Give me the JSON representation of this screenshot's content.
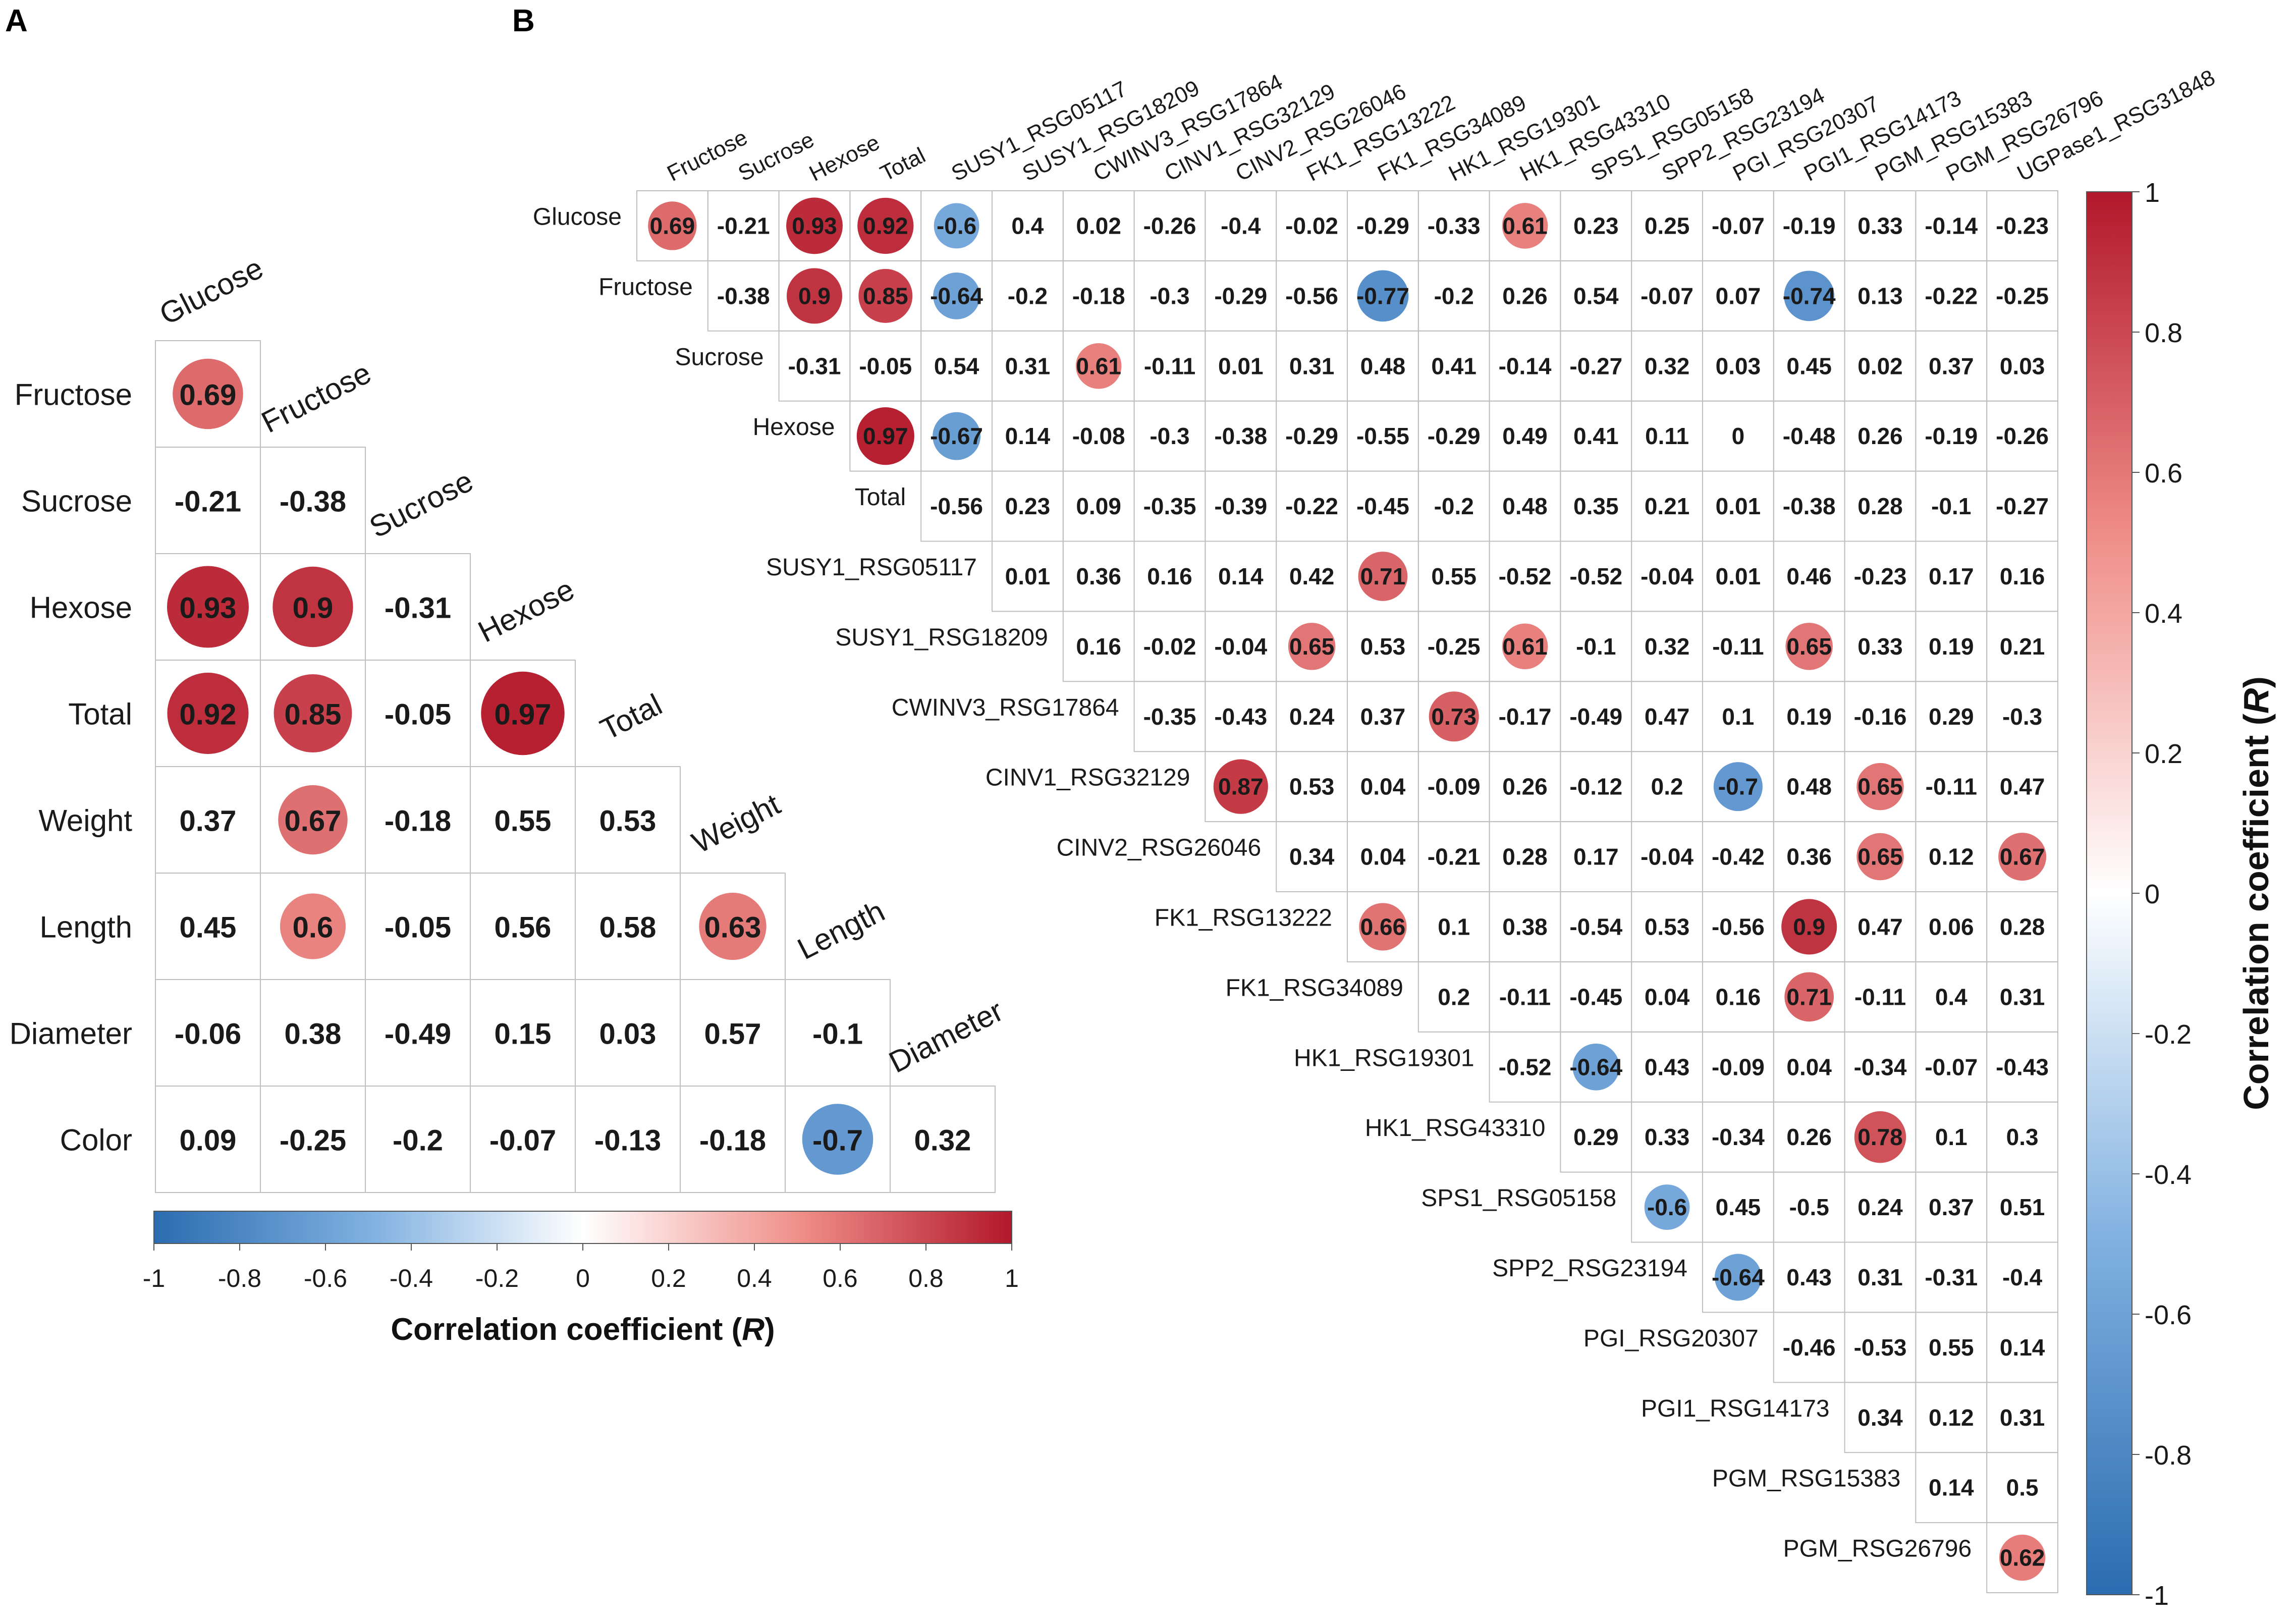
{
  "chart_data": [
    {
      "type": "heatmap",
      "panel_label": "A",
      "shape": "lower-triangle-correlation",
      "row_labels": [
        "Fructose",
        "Sucrose",
        "Hexose",
        "Total",
        "Weight",
        "Length",
        "Diameter",
        "Color"
      ],
      "col_labels": [
        "Glucose",
        "Fructose",
        "Sucrose",
        "Hexose",
        "Total",
        "Weight",
        "Length",
        "Diameter"
      ],
      "values": [
        [
          0.69
        ],
        [
          -0.21,
          -0.38
        ],
        [
          0.93,
          0.9,
          -0.31
        ],
        [
          0.92,
          0.85,
          -0.05,
          0.97
        ],
        [
          0.37,
          0.67,
          -0.18,
          0.55,
          0.53
        ],
        [
          0.45,
          0.6,
          -0.05,
          0.56,
          0.58,
          0.63
        ],
        [
          -0.06,
          0.38,
          -0.49,
          0.15,
          0.03,
          0.57,
          -0.1
        ],
        [
          0.09,
          -0.25,
          -0.2,
          -0.07,
          -0.13,
          -0.18,
          -0.7,
          0.32
        ]
      ],
      "value_labels": [
        [
          "0.69"
        ],
        [
          "-0.21",
          "-0.38"
        ],
        [
          "0.93",
          "0.9",
          "-0.31"
        ],
        [
          "0.92",
          "0.85",
          "-0.05",
          "0.97"
        ],
        [
          "0.37",
          "0.67",
          "-0.18",
          "0.55",
          "0.53"
        ],
        [
          "0.45",
          "0.6",
          "-0.05",
          "0.56",
          "0.58",
          "0.63"
        ],
        [
          "-0.06",
          "0.38",
          "-0.49",
          "0.15",
          "0.03",
          "0.57",
          "-0.1"
        ],
        [
          "0.09",
          "-0.25",
          "-0.2",
          "-0.07",
          "-0.13",
          "-0.18",
          "-0.7",
          "0.32"
        ]
      ],
      "circle_threshold": 0.6,
      "colorbar": {
        "orientation": "horizontal",
        "range": [
          -1,
          1
        ],
        "ticks": [
          "-1",
          "-0.8",
          "-0.6",
          "-0.4",
          "-0.2",
          "0",
          "0.2",
          "0.4",
          "0.6",
          "0.8",
          "1"
        ],
        "label": "Correlation coefficient (",
        "label_italic": "R",
        "label_end": ")"
      }
    },
    {
      "type": "heatmap",
      "panel_label": "B",
      "shape": "upper-triangle-correlation",
      "row_labels": [
        "Glucose",
        "Fructose",
        "Sucrose",
        "Hexose",
        "Total",
        "SUSY1_RSG05117",
        "SUSY1_RSG18209",
        "CWINV3_RSG17864",
        "CINV1_RSG32129",
        "CINV2_RSG26046",
        "FK1_RSG13222",
        "FK1_RSG34089",
        "HK1_RSG19301",
        "HK1_RSG43310",
        "SPS1_RSG05158",
        "SPP2_RSG23194",
        "PGI_RSG20307",
        "PGI1_RSG14173",
        "PGM_RSG15383",
        "PGM_RSG26796"
      ],
      "col_labels": [
        "Fructose",
        "Sucrose",
        "Hexose",
        "Total",
        "SUSY1_RSG05117",
        "SUSY1_RSG18209",
        "CWINV3_RSG17864",
        "CINV1_RSG32129",
        "CINV2_RSG26046",
        "FK1_RSG13222",
        "FK1_RSG34089",
        "HK1_RSG19301",
        "HK1_RSG43310",
        "SPS1_RSG05158",
        "SPP2_RSG23194",
        "PGI_RSG20307",
        "PGI1_RSG14173",
        "PGM_RSG15383",
        "PGM_RSG26796",
        "UGPase1_RSG31848"
      ],
      "values": [
        [
          0.69,
          -0.21,
          0.93,
          0.92,
          -0.6,
          0.4,
          0.02,
          -0.26,
          -0.4,
          -0.02,
          -0.29,
          -0.33,
          0.61,
          0.23,
          0.25,
          -0.07,
          -0.19,
          0.33,
          -0.14,
          -0.23
        ],
        [
          -0.38,
          0.9,
          0.85,
          -0.64,
          -0.2,
          -0.18,
          -0.3,
          -0.29,
          -0.56,
          -0.77,
          -0.2,
          0.26,
          0.54,
          -0.07,
          0.07,
          -0.74,
          0.13,
          -0.22,
          -0.25
        ],
        [
          -0.31,
          -0.05,
          0.54,
          0.31,
          0.61,
          -0.11,
          0.01,
          0.31,
          0.48,
          0.41,
          -0.14,
          -0.27,
          0.32,
          0.03,
          0.45,
          0.02,
          0.37,
          0.03
        ],
        [
          0.97,
          -0.67,
          0.14,
          -0.08,
          -0.3,
          -0.38,
          -0.29,
          -0.55,
          -0.29,
          0.49,
          0.41,
          0.11,
          0,
          -0.48,
          0.26,
          -0.19,
          -0.26
        ],
        [
          -0.56,
          0.23,
          0.09,
          -0.35,
          -0.39,
          -0.22,
          -0.45,
          -0.2,
          0.48,
          0.35,
          0.21,
          0.01,
          -0.38,
          0.28,
          -0.1,
          -0.27
        ],
        [
          0.01,
          0.36,
          0.16,
          0.14,
          0.42,
          0.71,
          0.55,
          -0.52,
          -0.52,
          -0.04,
          0.01,
          0.46,
          -0.23,
          0.17,
          0.16
        ],
        [
          0.16,
          -0.02,
          -0.04,
          0.65,
          0.53,
          -0.25,
          0.61,
          -0.1,
          0.32,
          -0.11,
          0.65,
          0.33,
          0.19,
          0.21
        ],
        [
          -0.35,
          -0.43,
          0.24,
          0.37,
          0.73,
          -0.17,
          -0.49,
          0.47,
          0.1,
          0.19,
          -0.16,
          0.29,
          -0.3
        ],
        [
          0.87,
          0.53,
          0.04,
          -0.09,
          0.26,
          -0.12,
          0.2,
          -0.7,
          0.48,
          0.65,
          -0.11,
          0.47
        ],
        [
          0.34,
          0.04,
          -0.21,
          0.28,
          0.17,
          -0.04,
          -0.42,
          0.36,
          0.65,
          0.12,
          0.67
        ],
        [
          0.66,
          0.1,
          0.38,
          -0.54,
          0.53,
          -0.56,
          0.9,
          0.47,
          0.06,
          0.28
        ],
        [
          0.2,
          -0.11,
          -0.45,
          0.04,
          0.16,
          0.71,
          -0.11,
          0.4,
          0.31
        ],
        [
          -0.52,
          -0.64,
          0.43,
          -0.09,
          0.04,
          -0.34,
          -0.07,
          -0.43
        ],
        [
          0.29,
          0.33,
          -0.34,
          0.26,
          0.78,
          0.1,
          0.3
        ],
        [
          -0.6,
          0.45,
          -0.5,
          0.24,
          0.37,
          0.51
        ],
        [
          -0.64,
          0.43,
          0.31,
          -0.31,
          -0.4
        ],
        [
          -0.46,
          -0.53,
          0.55,
          0.14
        ],
        [
          0.34,
          0.12,
          0.31
        ],
        [
          0.14,
          0.5
        ],
        [
          0.62
        ]
      ],
      "value_labels": [
        [
          "0.69",
          "-0.21",
          "0.93",
          "0.92",
          "-0.6",
          "0.4",
          "0.02",
          "-0.26",
          "-0.4",
          "-0.02",
          "-0.29",
          "-0.33",
          "0.61",
          "0.23",
          "0.25",
          "-0.07",
          "-0.19",
          "0.33",
          "-0.14",
          "-0.23"
        ],
        [
          "-0.38",
          "0.9",
          "0.85",
          "-0.64",
          "-0.2",
          "-0.18",
          "-0.3",
          "-0.29",
          "-0.56",
          "-0.77",
          "-0.2",
          "0.26",
          "0.54",
          "-0.07",
          "0.07",
          "-0.74",
          "0.13",
          "-0.22",
          "-0.25"
        ],
        [
          "-0.31",
          "-0.05",
          "0.54",
          "0.31",
          "0.61",
          "-0.11",
          "0.01",
          "0.31",
          "0.48",
          "0.41",
          "-0.14",
          "-0.27",
          "0.32",
          "0.03",
          "0.45",
          "0.02",
          "0.37",
          "0.03"
        ],
        [
          "0.97",
          "-0.67",
          "0.14",
          "-0.08",
          "-0.3",
          "-0.38",
          "-0.29",
          "-0.55",
          "-0.29",
          "0.49",
          "0.41",
          "0.11",
          "0",
          "-0.48",
          "0.26",
          "-0.19",
          "-0.26"
        ],
        [
          "-0.56",
          "0.23",
          "0.09",
          "-0.35",
          "-0.39",
          "-0.22",
          "-0.45",
          "-0.2",
          "0.48",
          "0.35",
          "0.21",
          "0.01",
          "-0.38",
          "0.28",
          "-0.1",
          "-0.27"
        ],
        [
          "0.01",
          "0.36",
          "0.16",
          "0.14",
          "0.42",
          "0.71",
          "0.55",
          "-0.52",
          "-0.52",
          "-0.04",
          "0.01",
          "0.46",
          "-0.23",
          "0.17",
          "0.16"
        ],
        [
          "0.16",
          "-0.02",
          "-0.04",
          "0.65",
          "0.53",
          "-0.25",
          "0.61",
          "-0.1",
          "0.32",
          "-0.11",
          "0.65",
          "0.33",
          "0.19",
          "0.21"
        ],
        [
          "-0.35",
          "-0.43",
          "0.24",
          "0.37",
          "0.73",
          "-0.17",
          "-0.49",
          "0.47",
          "0.1",
          "0.19",
          "-0.16",
          "0.29",
          "-0.3"
        ],
        [
          "0.87",
          "0.53",
          "0.04",
          "-0.09",
          "0.26",
          "-0.12",
          "0.2",
          "-0.7",
          "0.48",
          "0.65",
          "-0.11",
          "0.47"
        ],
        [
          "0.34",
          "0.04",
          "-0.21",
          "0.28",
          "0.17",
          "-0.04",
          "-0.42",
          "0.36",
          "0.65",
          "0.12",
          "0.67"
        ],
        [
          "0.66",
          "0.1",
          "0.38",
          "-0.54",
          "0.53",
          "-0.56",
          "0.9",
          "0.47",
          "0.06",
          "0.28"
        ],
        [
          "0.2",
          "-0.11",
          "-0.45",
          "0.04",
          "0.16",
          "0.71",
          "-0.11",
          "0.4",
          "0.31"
        ],
        [
          "-0.52",
          "-0.64",
          "0.43",
          "-0.09",
          "0.04",
          "-0.34",
          "-0.07",
          "-0.43"
        ],
        [
          "0.29",
          "0.33",
          "-0.34",
          "0.26",
          "0.78",
          "0.1",
          "0.3"
        ],
        [
          "-0.6",
          "0.45",
          "-0.5",
          "0.24",
          "0.37",
          "0.51"
        ],
        [
          "-0.64",
          "0.43",
          "0.31",
          "-0.31",
          "-0.4"
        ],
        [
          "-0.46",
          "-0.53",
          "0.55",
          "0.14"
        ],
        [
          "0.34",
          "0.12",
          "0.31"
        ],
        [
          "0.14",
          "0.5"
        ],
        [
          "0.62"
        ]
      ],
      "circle_threshold": 0.6,
      "colorbar": {
        "orientation": "vertical",
        "range": [
          -1,
          1
        ],
        "ticks": [
          "1",
          "0.8",
          "0.6",
          "0.4",
          "0.2",
          "0",
          "-0.2",
          "-0.4",
          "-0.6",
          "-0.8",
          "-1"
        ],
        "label": "Correlation coefficient (",
        "label_italic": "R",
        "label_end": ")"
      }
    }
  ],
  "colors": {
    "negative": "#2166ac",
    "negative_mid": "#6a9fd6",
    "neutral": "#ffffff",
    "positive_mid": "#e07b73",
    "positive": "#b2182b",
    "grid": "#bfbfbf",
    "text": "#1a1a1a"
  }
}
